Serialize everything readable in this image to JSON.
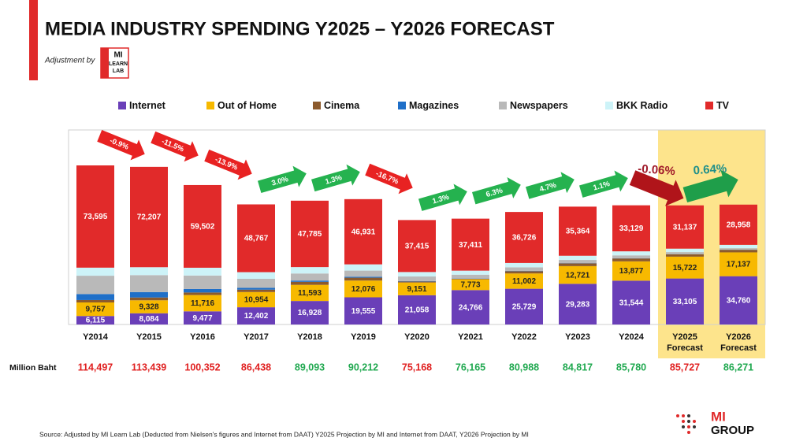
{
  "chart_data": {
    "type": "stacked_bar",
    "title": "MEDIA INDUSTRY SPENDING Y2025 – Y2026 FORECAST",
    "adjustment_text": "Adjustment by",
    "logo_lines": [
      "MI",
      "LEARN",
      "LAB"
    ],
    "categories": [
      "Y2014",
      "Y2015",
      "Y2016",
      "Y2017",
      "Y2018",
      "Y2019",
      "Y2020",
      "Y2021",
      "Y2022",
      "Y2023",
      "Y2024",
      "Y2025 Forecast",
      "Y2026 Forecast"
    ],
    "ylim": [
      0,
      140000
    ],
    "series": [
      {
        "name": "Internet",
        "color": "#6a3fb8",
        "label_color": "#ffffff",
        "values": [
          6115,
          8084,
          9477,
          12402,
          16928,
          19555,
          21058,
          24766,
          25729,
          29283,
          31544,
          33105,
          34760
        ],
        "value_labels": [
          "6,115",
          "8,084",
          "9,477",
          "12,402",
          "16,928",
          "19,555",
          "21,058",
          "24,766",
          "25,729",
          "29,283",
          "31,544",
          "33,105",
          "34,760"
        ]
      },
      {
        "name": "Out of Home",
        "color": "#f7b900",
        "label_color": "#222222",
        "values": [
          9757,
          9328,
          11716,
          10954,
          11593,
          12076,
          9151,
          7773,
          11002,
          12721,
          13877,
          15722,
          17137
        ],
        "value_labels": [
          "9,757",
          "9,328",
          "11,716",
          "10,954",
          "11,593",
          "12,076",
          "9,151",
          "7,773",
          "11,002",
          "12,721",
          "13,877",
          "15,722",
          "17,137"
        ]
      },
      {
        "name": "Cinema",
        "color": "#8c5a2c",
        "values": [
          1730,
          2020,
          1857,
          1715,
          2187,
          2050,
          744,
          315,
          1631,
          1999,
          2100,
          1663,
          1836
        ]
      },
      {
        "name": "Magazines",
        "color": "#1f6fc8",
        "values": [
          4300,
          3900,
          2500,
          1300,
          900,
          700,
          300,
          200,
          200,
          150,
          130,
          100,
          80
        ]
      },
      {
        "name": "Newspapers",
        "color": "#b9b9b9",
        "values": [
          13200,
          12200,
          9700,
          6500,
          5100,
          4400,
          3300,
          2800,
          2600,
          2300,
          2100,
          1500,
          1100
        ]
      },
      {
        "name": "BKK Radio",
        "color": "#cdf3f8",
        "values": [
          5800,
          5700,
          5600,
          4800,
          4600,
          4500,
          3200,
          2900,
          3100,
          3000,
          2900,
          2500,
          2400
        ]
      },
      {
        "name": "TV",
        "color": "#e12a2a",
        "label_color": "#ffffff",
        "values": [
          73595,
          72207,
          59502,
          48767,
          47785,
          46931,
          37415,
          37411,
          36726,
          35364,
          33129,
          31137,
          28958
        ],
        "value_labels": [
          "73,595",
          "72,207",
          "59,502",
          "48,767",
          "47,785",
          "46,931",
          "37,415",
          "37,411",
          "36,726",
          "35,364",
          "33,129",
          "31,137",
          "28,958"
        ]
      }
    ],
    "growth": {
      "values": [
        -0.9,
        -11.5,
        -13.9,
        3.0,
        1.3,
        -16.7,
        1.3,
        6.3,
        4.7,
        1.1,
        -0.06,
        0.64
      ],
      "value_labels": [
        "-0.9%",
        "-11.5%",
        "-13.9%",
        "3.0%",
        "1.3%",
        "-16.7%",
        "1.3%",
        "6.3%",
        "4.7%",
        "1.1%",
        "-0.06%",
        "0.64%"
      ]
    },
    "totals_label": "Million Baht",
    "totals": {
      "values": [
        114497,
        113439,
        100352,
        86438,
        89093,
        90212,
        75168,
        76165,
        80988,
        84817,
        85780,
        85727,
        86271
      ],
      "value_labels": [
        "114,497",
        "113,439",
        "100,352",
        "86,438",
        "89,093",
        "90,212",
        "75,168",
        "76,165",
        "80,988",
        "84,817",
        "85,780",
        "85,727",
        "86,271"
      ],
      "colors": [
        "#e02020",
        "#e02020",
        "#e02020",
        "#e02020",
        "#1fa84f",
        "#1fa84f",
        "#e02020",
        "#1fa84f",
        "#1fa84f",
        "#1fa84f",
        "#1fa84f",
        "#e02020",
        "#1fa84f"
      ]
    },
    "source": "Source: Adjusted by MI Learn Lab (Deducted  from Nielsen's figures and Internet from DAAT) Y2025 Projection by MI and Internet from DAAT, Y2026 Projection by MI",
    "footer_logo": [
      "MI",
      "GROUP"
    ]
  }
}
